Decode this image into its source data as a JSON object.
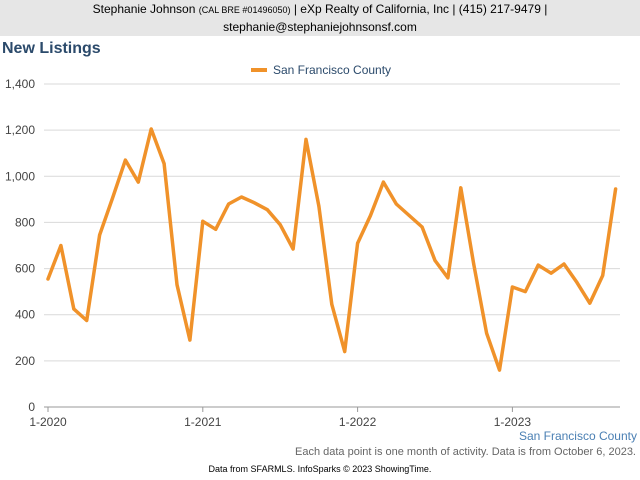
{
  "header": {
    "name": "Stephanie Johnson",
    "license": "(CAL BRE #01496050)",
    "company": "| eXp Realty of California, Inc | (415) 217-9479 |",
    "email": "stephanie@stephaniejohnsonsf.com"
  },
  "note": "Each data point is one month of activity. Data is from October 6, 2023.",
  "footer": "Data from SFARMLS. InfoSparks © 2023 ShowingTime.",
  "series_label": "San Francisco County",
  "colors": {
    "line": "#f0922a",
    "grid": "#d9d9d9",
    "axis": "#999999"
  },
  "chart_data": {
    "type": "line",
    "title": "New Listings",
    "legend": "top-center",
    "grid": true,
    "ylim": [
      0,
      1400
    ],
    "yticks": [
      0,
      200,
      400,
      600,
      800,
      1000,
      1200,
      1400
    ],
    "ytick_labels": [
      "0",
      "200",
      "400",
      "600",
      "800",
      "1,000",
      "1,200",
      "1,400"
    ],
    "xticks": [
      {
        "label": "1-2020",
        "index": 0
      },
      {
        "label": "1-2021",
        "index": 12
      },
      {
        "label": "1-2022",
        "index": 24
      },
      {
        "label": "1-2023",
        "index": 36
      }
    ],
    "series": [
      {
        "name": "San Francisco County",
        "x": [
          "2020-01",
          "2020-02",
          "2020-03",
          "2020-04",
          "2020-05",
          "2020-06",
          "2020-07",
          "2020-08",
          "2020-09",
          "2020-10",
          "2020-11",
          "2020-12",
          "2021-01",
          "2021-02",
          "2021-03",
          "2021-04",
          "2021-05",
          "2021-06",
          "2021-07",
          "2021-08",
          "2021-09",
          "2021-10",
          "2021-11",
          "2021-12",
          "2022-01",
          "2022-02",
          "2022-03",
          "2022-04",
          "2022-05",
          "2022-06",
          "2022-07",
          "2022-08",
          "2022-09",
          "2022-10",
          "2022-11",
          "2022-12",
          "2023-01",
          "2023-02",
          "2023-03",
          "2023-04",
          "2023-05",
          "2023-06",
          "2023-07",
          "2023-08",
          "2023-09"
        ],
        "values": [
          555,
          700,
          425,
          375,
          745,
          905,
          1070,
          975,
          1205,
          1055,
          530,
          290,
          805,
          770,
          880,
          910,
          885,
          855,
          790,
          685,
          1160,
          870,
          445,
          240,
          710,
          830,
          975,
          880,
          830,
          780,
          635,
          560,
          950,
          620,
          320,
          160,
          520,
          500,
          615,
          580,
          620,
          540,
          450,
          570,
          945
        ]
      }
    ]
  }
}
